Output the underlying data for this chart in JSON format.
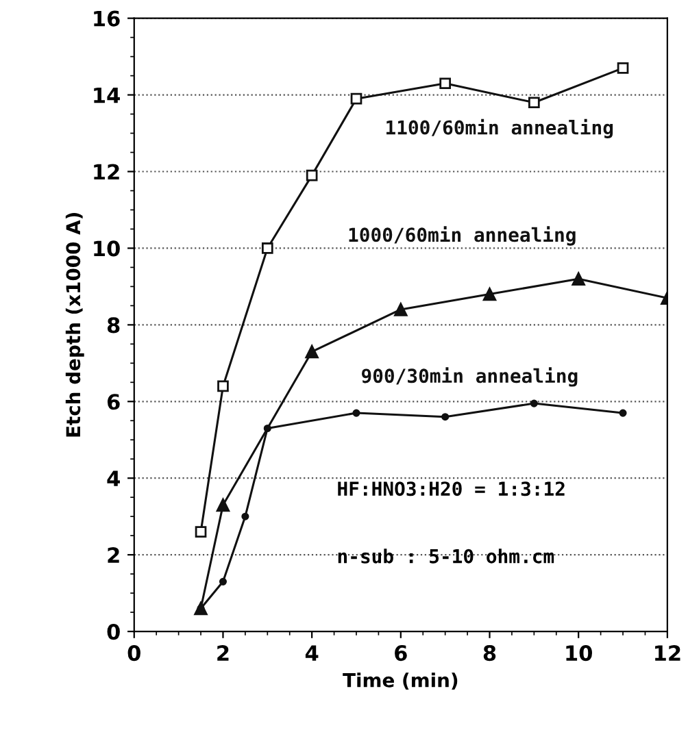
{
  "chart_data": {
    "type": "line",
    "xlabel": "Time (min)",
    "ylabel": "Etch depth (x1000 A)",
    "xlim": [
      0,
      12
    ],
    "xticks": [
      0,
      2,
      4,
      6,
      8,
      10,
      12
    ],
    "ylim": [
      0,
      16
    ],
    "yticks": [
      0,
      2,
      4,
      6,
      8,
      10,
      12,
      14,
      16
    ],
    "grid": "y",
    "line_style": "solid",
    "series": [
      {
        "name": "1100/60min annealing",
        "color": "#111111",
        "marker": "square",
        "x": [
          1.5,
          2,
          3,
          4,
          5,
          7,
          9,
          11
        ],
        "values": [
          2.6,
          6.4,
          10.0,
          11.9,
          13.9,
          14.3,
          13.8,
          14.7
        ]
      },
      {
        "name": "1000/60min annealing",
        "color": "#111111",
        "marker": "triangle",
        "x": [
          1.5,
          2,
          4,
          6,
          8,
          10,
          12
        ],
        "values": [
          0.6,
          3.3,
          7.3,
          8.4,
          8.8,
          9.2,
          8.7
        ]
      },
      {
        "name": "900/30min annealing",
        "color": "#111111",
        "marker": "circle",
        "x": [
          1.5,
          2,
          2.5,
          3,
          5,
          7,
          9,
          11
        ],
        "values": [
          0.6,
          1.3,
          3.0,
          5.3,
          5.7,
          5.6,
          5.95,
          5.7
        ]
      }
    ],
    "annotations": [
      "HF:HNO3:H20 = 1:3:12",
      "n-sub : 5-10 ohm.cm"
    ]
  }
}
